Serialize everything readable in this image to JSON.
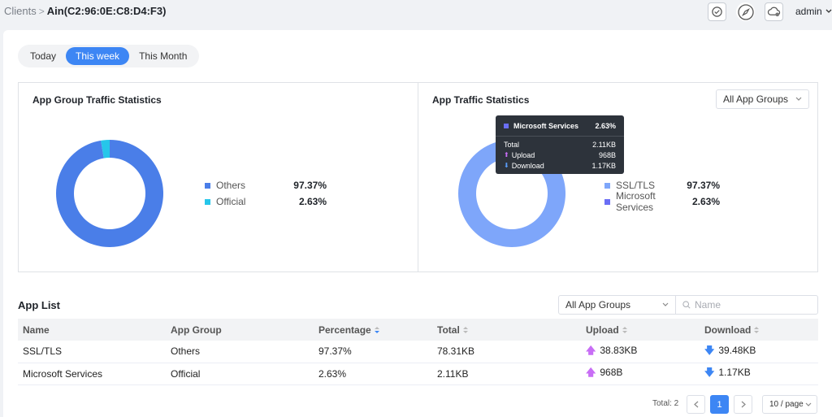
{
  "breadcrumb": {
    "parent": "Clients",
    "separator": ">",
    "current": "Ain(C2:96:0E:C8:D4:F3)"
  },
  "header": {
    "user": "admin"
  },
  "time_range": {
    "options": [
      "Today",
      "This week",
      "This Month"
    ],
    "selected": "This week"
  },
  "app_group_chart": {
    "title": "App Group Traffic Statistics",
    "items": [
      {
        "name": "Others",
        "value": "97.37%",
        "pct": 97.37,
        "color": "#4a7ee8"
      },
      {
        "name": "Official",
        "value": "2.63%",
        "pct": 2.63,
        "color": "#26c6ea"
      }
    ]
  },
  "app_chart": {
    "title": "App Traffic Statistics",
    "filter": "All App Groups",
    "items": [
      {
        "name": "SSL/TLS",
        "value": "97.37%",
        "pct": 97.37,
        "color": "#7ea6fa"
      },
      {
        "name": "Microsoft Services",
        "value": "2.63%",
        "pct": 2.63,
        "color": "#6a6ef5"
      }
    ],
    "tooltip": {
      "title": "Microsoft Services",
      "value": "2.63%",
      "rows": [
        {
          "label": "Total",
          "value": "2.11KB"
        },
        {
          "label": "Upload",
          "value": "968B"
        },
        {
          "label": "Download",
          "value": "1.17KB"
        }
      ]
    }
  },
  "app_list": {
    "title": "App List",
    "group_filter": "All App Groups",
    "search_placeholder": "Name",
    "columns": [
      "Name",
      "App Group",
      "Percentage",
      "Total",
      "Upload",
      "Download"
    ],
    "rows": [
      {
        "name": "SSL/TLS",
        "group": "Others",
        "percentage": "97.37%",
        "total": "78.31KB",
        "upload": "38.83KB",
        "download": "39.48KB"
      },
      {
        "name": "Microsoft Services",
        "group": "Official",
        "percentage": "2.63%",
        "total": "2.11KB",
        "upload": "968B",
        "download": "1.17KB"
      }
    ]
  },
  "pagination": {
    "total": "Total: 2",
    "current_page": "1",
    "page_size": "10 / page"
  }
}
